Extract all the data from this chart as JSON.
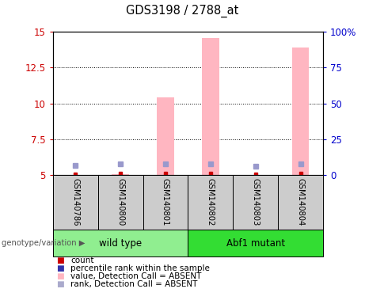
{
  "title": "GDS3198 / 2788_at",
  "samples": [
    "GSM140786",
    "GSM140800",
    "GSM140801",
    "GSM140802",
    "GSM140803",
    "GSM140804"
  ],
  "groups": [
    {
      "name": "wild type",
      "color": "#90EE90",
      "indices": [
        0,
        1,
        2
      ]
    },
    {
      "name": "Abf1 mutant",
      "color": "#33DD33",
      "indices": [
        3,
        4,
        5
      ]
    }
  ],
  "ylim_left": [
    5,
    15
  ],
  "ylim_right": [
    0,
    100
  ],
  "yticks_left": [
    5,
    7.5,
    10,
    12.5,
    15
  ],
  "yticks_right": [
    0,
    25,
    50,
    75,
    100
  ],
  "ytick_labels_left": [
    "5",
    "7.5",
    "10",
    "12.5",
    "15"
  ],
  "ytick_labels_right": [
    "0",
    "25",
    "50",
    "75",
    "100%"
  ],
  "pink_bar_tops": [
    5.0,
    5.05,
    10.4,
    14.55,
    5.0,
    13.9
  ],
  "pink_bar_base": 5.0,
  "blue_sq_y": [
    5.68,
    5.75,
    5.75,
    5.75,
    5.62,
    5.75
  ],
  "red_sq_y": [
    5.02,
    5.08,
    5.08,
    5.08,
    5.02,
    5.08
  ],
  "pink_color": "#FFB6C1",
  "blue_sq_color": "#9999CC",
  "red_sq_color": "#CC0000",
  "bar_width": 0.38,
  "legend_items": [
    {
      "label": "count",
      "color": "#CC0000"
    },
    {
      "label": "percentile rank within the sample",
      "color": "#3333AA"
    },
    {
      "label": "value, Detection Call = ABSENT",
      "color": "#FFB6C1"
    },
    {
      "label": "rank, Detection Call = ABSENT",
      "color": "#AAAACC"
    }
  ],
  "genotype_label": "genotype/variation",
  "left_color": "#CC0000",
  "right_color": "#0000CC",
  "sample_box_color": "#CCCCCC",
  "fig_bg": "#FFFFFF"
}
